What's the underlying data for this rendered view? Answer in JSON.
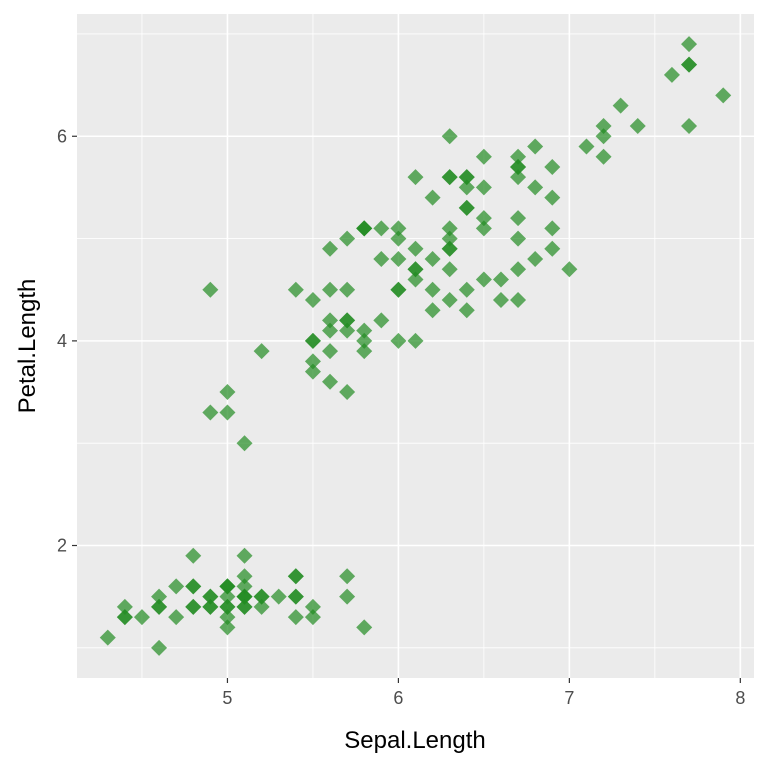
{
  "chart_data": {
    "type": "scatter",
    "title": "",
    "xlabel": "Sepal.Length",
    "ylabel": "Petal.Length",
    "xlim": [
      4.12,
      8.08
    ],
    "ylim": [
      0.705,
      7.195
    ],
    "x_ticks": [
      5,
      6,
      7,
      8
    ],
    "y_ticks": [
      2,
      4,
      6
    ],
    "x_tick_labels": [
      "5",
      "6",
      "7",
      "8"
    ],
    "y_tick_labels": [
      "2",
      "4",
      "6"
    ],
    "grid": true,
    "legend": "none",
    "marker": "diamond",
    "colors": {
      "panel_background": "#ebebeb",
      "grid_major": "#ffffff",
      "point": "#228b22"
    },
    "point_opacity": 0.7,
    "series": [
      {
        "x": [
          5.1,
          4.9,
          4.7,
          4.6,
          5.0,
          5.4,
          4.6,
          5.0,
          4.4,
          4.9,
          5.4,
          4.8,
          4.8,
          4.3,
          5.8,
          5.7,
          5.4,
          5.1,
          5.7,
          5.1,
          5.4,
          5.1,
          4.6,
          5.1,
          4.8,
          5.0,
          5.0,
          5.2,
          5.2,
          4.7,
          4.8,
          5.4,
          5.2,
          5.5,
          4.9,
          5.0,
          5.5,
          4.9,
          4.4,
          5.1,
          5.0,
          4.5,
          4.4,
          5.0,
          5.1,
          4.8,
          5.1,
          4.6,
          5.3,
          5.0,
          7.0,
          6.4,
          6.9,
          5.5,
          6.5,
          5.7,
          6.3,
          4.9,
          6.6,
          5.2,
          5.0,
          5.9,
          6.0,
          6.1,
          5.6,
          6.7,
          5.6,
          5.8,
          6.2,
          5.6,
          5.9,
          6.1,
          6.3,
          6.1,
          6.4,
          6.6,
          6.8,
          6.7,
          6.0,
          5.7,
          5.5,
          5.5,
          5.8,
          6.0,
          5.4,
          6.0,
          6.7,
          6.3,
          5.6,
          5.5,
          5.5,
          6.1,
          5.8,
          5.0,
          5.6,
          5.7,
          5.7,
          6.2,
          5.1,
          5.7,
          6.3,
          5.8,
          7.1,
          6.3,
          6.5,
          7.6,
          4.9,
          7.3,
          6.7,
          7.2,
          6.5,
          6.4,
          6.8,
          5.7,
          5.8,
          6.4,
          6.5,
          7.7,
          7.7,
          6.0,
          6.9,
          5.6,
          7.7,
          6.3,
          6.7,
          7.2,
          6.2,
          6.1,
          6.4,
          7.2,
          7.4,
          7.9,
          6.4,
          6.3,
          6.1,
          7.7,
          6.3,
          6.4,
          6.0,
          6.9,
          6.7,
          6.9,
          5.8,
          6.8,
          6.7,
          6.7,
          6.3,
          6.5,
          6.2,
          5.9
        ],
        "y": [
          1.4,
          1.4,
          1.3,
          1.5,
          1.4,
          1.7,
          1.4,
          1.5,
          1.4,
          1.5,
          1.5,
          1.6,
          1.4,
          1.1,
          1.2,
          1.5,
          1.3,
          1.4,
          1.7,
          1.5,
          1.7,
          1.5,
          1.0,
          1.7,
          1.9,
          1.6,
          1.6,
          1.5,
          1.4,
          1.6,
          1.6,
          1.5,
          1.5,
          1.4,
          1.5,
          1.2,
          1.3,
          1.4,
          1.3,
          1.5,
          1.3,
          1.3,
          1.3,
          1.6,
          1.9,
          1.4,
          1.6,
          1.4,
          1.5,
          1.4,
          4.7,
          4.5,
          4.9,
          4.0,
          4.6,
          4.5,
          4.7,
          3.3,
          4.6,
          3.9,
          3.5,
          4.2,
          4.0,
          4.7,
          3.6,
          4.4,
          4.5,
          4.1,
          4.5,
          3.9,
          4.8,
          4.0,
          4.9,
          4.7,
          4.3,
          4.4,
          4.8,
          5.0,
          4.5,
          3.5,
          3.8,
          3.7,
          3.9,
          5.1,
          4.5,
          4.5,
          4.7,
          4.4,
          4.1,
          4.0,
          4.4,
          4.6,
          4.0,
          3.3,
          4.2,
          4.2,
          4.2,
          4.3,
          3.0,
          4.1,
          6.0,
          5.1,
          5.9,
          5.6,
          5.8,
          6.6,
          4.5,
          6.3,
          5.8,
          6.1,
          5.1,
          5.3,
          5.5,
          5.0,
          5.1,
          5.3,
          5.5,
          6.7,
          6.9,
          5.0,
          5.7,
          4.9,
          6.7,
          4.9,
          5.7,
          6.0,
          4.8,
          4.9,
          5.6,
          5.8,
          6.1,
          6.4,
          5.6,
          5.1,
          5.6,
          6.1,
          5.6,
          5.5,
          4.8,
          5.4,
          5.6,
          5.1,
          5.1,
          5.9,
          5.7,
          5.2,
          5.0,
          5.2,
          5.4,
          5.1
        ]
      }
    ]
  }
}
